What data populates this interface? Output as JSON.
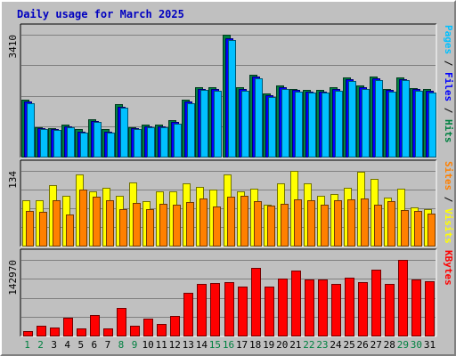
{
  "chart_data": {
    "type": "bar",
    "title": "Daily usage for March 2025",
    "categories": [
      "1",
      "2",
      "3",
      "4",
      "5",
      "6",
      "7",
      "8",
      "9",
      "10",
      "11",
      "12",
      "13",
      "14",
      "15",
      "16",
      "17",
      "18",
      "19",
      "20",
      "21",
      "22",
      "23",
      "24",
      "25",
      "26",
      "27",
      "28",
      "29",
      "30",
      "31"
    ],
    "weekend_days": [
      "1",
      "2",
      "8",
      "9",
      "15",
      "16",
      "22",
      "23",
      "29",
      "30"
    ],
    "panels": [
      {
        "id": "hits-files-pages",
        "ymax_label": "3410",
        "ymax": 3410,
        "series": [
          {
            "name": "Hits",
            "color": "#008040",
            "values": [
              1600,
              830,
              790,
              900,
              760,
              1050,
              760,
              1480,
              830,
              900,
              890,
              1030,
              1600,
              1950,
              1950,
              3410,
              1950,
              2300,
              1760,
              1990,
              1900,
              1860,
              1860,
              1950,
              2220,
              2000,
              2240,
              1900,
              2220,
              1920,
              1880
            ]
          },
          {
            "name": "Files",
            "color": "#0000ff",
            "values": [
              1550,
              800,
              760,
              850,
              700,
              1000,
              700,
              1400,
              800,
              850,
              850,
              970,
              1550,
              1900,
              1880,
              3300,
              1880,
              2230,
              1720,
              1930,
              1860,
              1820,
              1820,
              1890,
              2170,
              1940,
              2180,
              1860,
              2170,
              1880,
              1840
            ]
          },
          {
            "name": "Pages",
            "color": "#00c0ff",
            "values": [
              1500,
              780,
              740,
              820,
              680,
              970,
              660,
              1360,
              780,
              830,
              830,
              930,
              1500,
              1860,
              1850,
              3250,
              1830,
              2190,
              1680,
              1890,
              1820,
              1780,
              1780,
              1840,
              2120,
              1900,
              2130,
              1810,
              2130,
              1850,
              1800
            ]
          }
        ],
        "right_label": [
          {
            "text": "Pages",
            "color": "#00c0ff"
          },
          {
            "text": " / ",
            "color": "#000000"
          },
          {
            "text": "Files",
            "color": "#0000ff"
          },
          {
            "text": " / ",
            "color": "#000000"
          },
          {
            "text": "Hits",
            "color": "#008040"
          }
        ]
      },
      {
        "id": "visits-sites",
        "ymax_label": "134",
        "ymax": 134,
        "series": [
          {
            "name": "Visits",
            "color": "#ffff00",
            "values": [
              82,
              81,
              108,
              90,
              128,
              98,
              103,
              90,
              113,
              79,
              98,
              98,
              111,
              105,
              100,
              128,
              98,
              102,
              73,
              111,
              134,
              111,
              90,
              92,
              104,
              133,
              119,
              86,
              102,
              68,
              65
            ]
          },
          {
            "name": "Sites",
            "color": "#ff8000",
            "values": [
              63,
              60,
              81,
              56,
              100,
              87,
              82,
              65,
              77,
              65,
              75,
              73,
              78,
              84,
              70,
              88,
              90,
              80,
              71,
              75,
              83,
              81,
              74,
              82,
              83,
              84,
              73,
              80,
              64,
              62,
              58
            ]
          }
        ],
        "right_label": [
          {
            "text": "Sites",
            "color": "#ff8000"
          },
          {
            "text": " / ",
            "color": "#000000"
          },
          {
            "text": "Visits",
            "color": "#ffff00"
          }
        ]
      },
      {
        "id": "kbytes",
        "ymax_label": "142970",
        "ymax": 142970,
        "series": [
          {
            "name": "KBytes",
            "color": "#ff0000",
            "values": [
              8700,
              18000,
              15300,
              33000,
              14000,
              38000,
              14000,
              52500,
              19000,
              32000,
              22500,
              36500,
              81000,
              98000,
              100000,
              101000,
              92000,
              127000,
              92000,
              107000,
              122000,
              106000,
              106000,
              98000,
              110000,
              101000,
              124000,
              98000,
              142970,
              106000,
              102000
            ]
          }
        ],
        "right_label": [
          {
            "text": "KBytes",
            "color": "#ff0000"
          }
        ]
      }
    ]
  }
}
